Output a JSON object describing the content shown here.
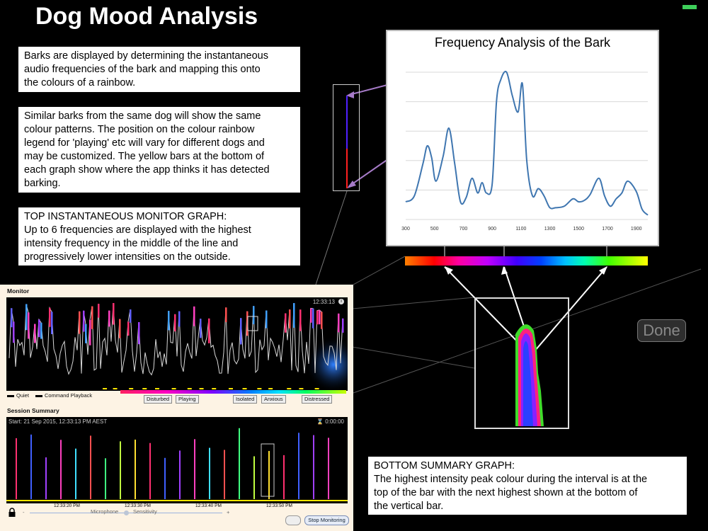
{
  "title": "Dog Mood Analysis",
  "notes": {
    "n1": [
      "Barks are displayed by determining the instantaneous",
      "audio frequencies of the bark and mapping this onto",
      "the colours of a rainbow."
    ],
    "n2": [
      "Similar barks from the same dog will show the same",
      "colour patterns. The position on the colour rainbow",
      "legend for 'playing' etc will vary for different dogs and",
      "may be customized. The yellow bars at the bottom of",
      "each graph show where the app thinks it has detected",
      "barking."
    ],
    "n3": [
      "TOP INSTANTANEOUS MONITOR GRAPH:",
      "Up to 6 frequencies are displayed with the highest",
      "intensity frequency in the middle of the line and",
      "progressively lower intensities on the outside."
    ],
    "n4": [
      "BOTTOM SUMMARY GRAPH:",
      "The highest intensity peak colour during the interval is at the",
      "top of the bar with the next highest shown at the bottom of",
      "the vertical bar."
    ]
  },
  "chart_data": {
    "type": "line",
    "title": "Frequency Analysis of the Bark",
    "xlabel": "",
    "ylabel": "",
    "x_ticks": [
      "300",
      "500",
      "700",
      "900",
      "1100",
      "1300",
      "1500",
      "1700",
      "1900"
    ],
    "xlim": [
      300,
      1980
    ],
    "ylim": [
      0,
      100
    ],
    "grid": true,
    "series": [
      {
        "x": [
          300,
          360,
          420,
          450,
          480,
          510,
          560,
          600,
          640,
          680,
          720,
          760,
          800,
          830,
          860,
          900,
          930,
          960,
          1000,
          1040,
          1080,
          1110,
          1140,
          1180,
          1220,
          1260,
          1300,
          1340,
          1400,
          1460,
          1500,
          1540,
          1580,
          1640,
          1680,
          1720,
          1760,
          1800,
          1840,
          1900,
          1940,
          1980
        ],
        "values": [
          12,
          16,
          38,
          50,
          42,
          26,
          43,
          62,
          38,
          12,
          15,
          28,
          18,
          25,
          18,
          24,
          80,
          95,
          100,
          84,
          73,
          92,
          40,
          16,
          21,
          16,
          8,
          8,
          9,
          14,
          12,
          13,
          17,
          28,
          16,
          9,
          14,
          18,
          26,
          19,
          7,
          3
        ]
      }
    ]
  },
  "done_label": "Done",
  "app": {
    "monitor_label": "Monitor",
    "monitor_time": "12:33:13",
    "info_glyph": "i",
    "legend_quiet": "Quiet",
    "legend_command": "Command Playback",
    "moods": [
      "Disturbed",
      "Playing",
      "Isolated",
      "Anxious",
      "Distressed"
    ],
    "summary_label": "Session Summary",
    "summary_start": "Start: 21 Sep 2015, 12:33:13 PM AEST",
    "summary_timer": "⌛ 0:00:00",
    "time_ticks": [
      "12:33:20 PM",
      "12:33:30 PM",
      "12:33:40 PM",
      "12:33:50 PM"
    ],
    "minus": "-",
    "plus": "+",
    "microphone_label": "Microphone",
    "sensitivity_label": "Sensitivity",
    "stop_label": "Stop Monitoring"
  },
  "colors": {
    "background": "#000000",
    "panel_bg": "#fdf3e4",
    "line": "#3f76b0",
    "arrow": "#a67bc8",
    "indicator": "#3ecf5a",
    "bark_yellow": "#ffe600"
  }
}
